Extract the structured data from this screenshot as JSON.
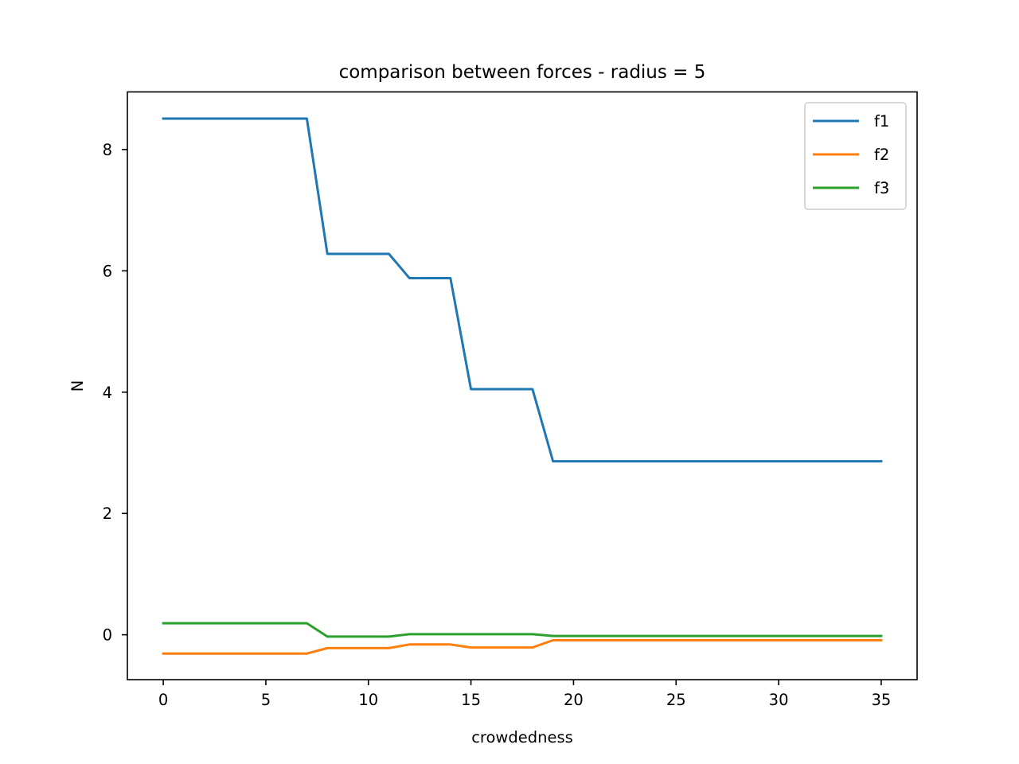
{
  "chart_data": {
    "type": "line",
    "title": "comparison between forces - radius = 5",
    "xlabel": "crowdedness",
    "ylabel": "N",
    "xlim": [
      -1.75,
      36.75
    ],
    "ylim": [
      -0.74,
      8.95
    ],
    "xticks": [
      0,
      5,
      10,
      15,
      20,
      25,
      30,
      35
    ],
    "yticks": [
      0,
      2,
      4,
      6,
      8
    ],
    "grid": false,
    "legend_position": "top-right",
    "x": [
      0,
      1,
      2,
      3,
      4,
      5,
      6,
      7,
      8,
      9,
      10,
      11,
      12,
      13,
      14,
      15,
      16,
      17,
      18,
      19,
      20,
      21,
      22,
      23,
      24,
      25,
      26,
      27,
      28,
      29,
      30,
      31,
      32,
      33,
      34,
      35
    ],
    "series": [
      {
        "name": "f1",
        "color": "#1f77b4",
        "values": [
          8.51,
          8.51,
          8.51,
          8.51,
          8.51,
          8.51,
          8.51,
          8.51,
          6.28,
          6.28,
          6.28,
          6.28,
          5.88,
          5.88,
          5.88,
          4.05,
          4.05,
          4.05,
          4.05,
          2.86,
          2.86,
          2.86,
          2.86,
          2.86,
          2.86,
          2.86,
          2.86,
          2.86,
          2.86,
          2.86,
          2.86,
          2.86,
          2.86,
          2.86,
          2.86,
          2.86
        ]
      },
      {
        "name": "f2",
        "color": "#ff7f0e",
        "values": [
          -0.31,
          -0.31,
          -0.31,
          -0.31,
          -0.31,
          -0.31,
          -0.31,
          -0.31,
          -0.22,
          -0.22,
          -0.22,
          -0.22,
          -0.16,
          -0.16,
          -0.16,
          -0.21,
          -0.21,
          -0.21,
          -0.21,
          -0.09,
          -0.09,
          -0.09,
          -0.09,
          -0.09,
          -0.09,
          -0.09,
          -0.09,
          -0.09,
          -0.09,
          -0.09,
          -0.09,
          -0.09,
          -0.09,
          -0.09,
          -0.09,
          -0.09
        ]
      },
      {
        "name": "f3",
        "color": "#2ca02c",
        "values": [
          0.19,
          0.19,
          0.19,
          0.19,
          0.19,
          0.19,
          0.19,
          0.19,
          -0.03,
          -0.03,
          -0.03,
          -0.03,
          0.01,
          0.01,
          0.01,
          0.01,
          0.01,
          0.01,
          0.01,
          -0.02,
          -0.02,
          -0.02,
          -0.02,
          -0.02,
          -0.02,
          -0.02,
          -0.02,
          -0.02,
          -0.02,
          -0.02,
          -0.02,
          -0.02,
          -0.02,
          -0.02,
          -0.02,
          -0.02
        ]
      }
    ]
  }
}
